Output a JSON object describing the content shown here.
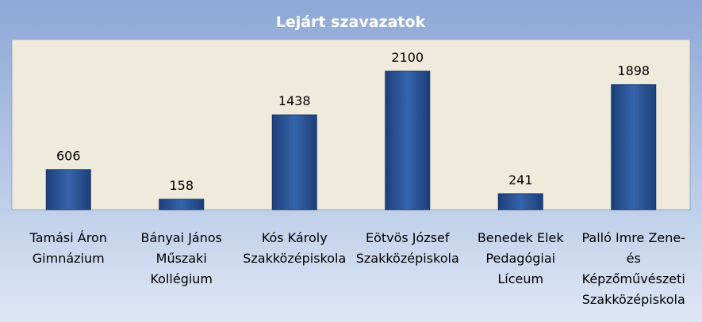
{
  "chart_data": {
    "type": "bar",
    "title": "Lejárt szavazatok",
    "categories": [
      "Tamási Áron\nGimnázium",
      "Bányai János\nMűszaki\nKollégium",
      "Kós Károly\nSzakközépiskola",
      "Eötvös József\nSzakközépiskola",
      "Benedek Elek\nPedagógiai\nLíceum",
      "Palló Imre Zene-\nés\nKépzőművészeti\nSzakközépiskola"
    ],
    "values": [
      606,
      158,
      1438,
      2100,
      241,
      1898
    ],
    "color": "#2a5294"
  }
}
